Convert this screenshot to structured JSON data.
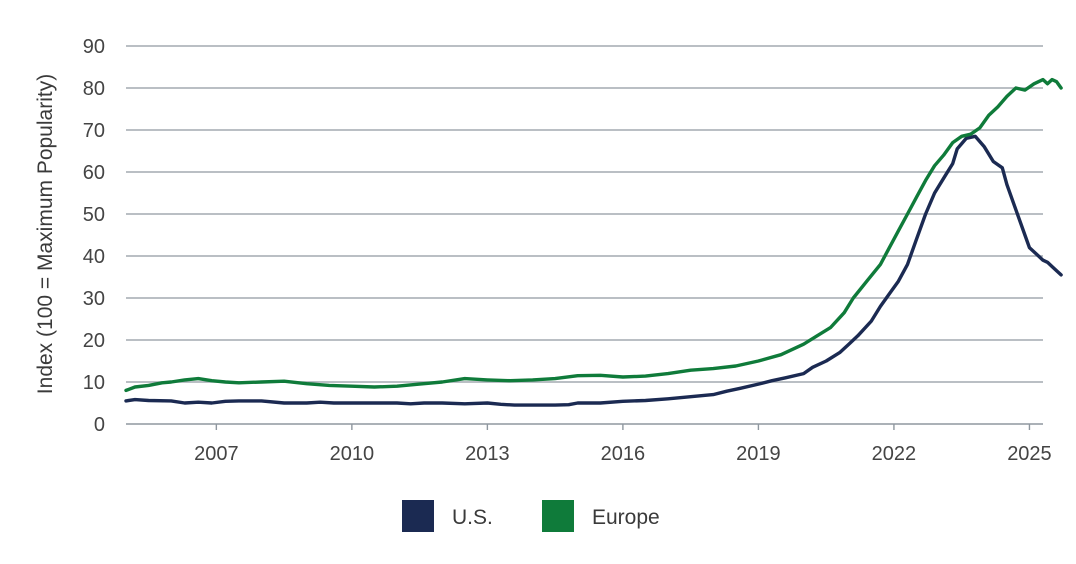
{
  "chart_data": {
    "type": "line",
    "title": "",
    "xlabel": "",
    "ylabel": "Index (100 = Maximum Popularity)",
    "ylim": [
      0,
      90
    ],
    "yticks": [
      0,
      10,
      20,
      30,
      40,
      50,
      60,
      70,
      80,
      90
    ],
    "xlim": [
      2005.0,
      2025.3
    ],
    "xtick_labels": [
      "2007",
      "2010",
      "2013",
      "2016",
      "2019",
      "2022",
      "2025"
    ],
    "grid": true,
    "legend_position": "bottom-center",
    "legend": [
      {
        "label": "U.S.",
        "color": "#1b2a52"
      },
      {
        "label": "Europe",
        "color": "#0f7b3a"
      }
    ],
    "series": [
      {
        "name": "U.S.",
        "color": "#1b2a52",
        "points": [
          [
            2005.0,
            5.5
          ],
          [
            2005.2,
            5.8
          ],
          [
            2005.5,
            5.6
          ],
          [
            2006.0,
            5.5
          ],
          [
            2006.3,
            5.0
          ],
          [
            2006.6,
            5.2
          ],
          [
            2006.9,
            5.0
          ],
          [
            2007.2,
            5.4
          ],
          [
            2007.5,
            5.5
          ],
          [
            2008.0,
            5.5
          ],
          [
            2008.5,
            5.0
          ],
          [
            2009.0,
            5.0
          ],
          [
            2009.3,
            5.2
          ],
          [
            2009.6,
            5.0
          ],
          [
            2010.0,
            5.0
          ],
          [
            2010.5,
            5.0
          ],
          [
            2011.0,
            5.0
          ],
          [
            2011.3,
            4.8
          ],
          [
            2011.6,
            5.0
          ],
          [
            2012.0,
            5.0
          ],
          [
            2012.5,
            4.8
          ],
          [
            2013.0,
            5.0
          ],
          [
            2013.3,
            4.7
          ],
          [
            2013.6,
            4.5
          ],
          [
            2014.0,
            4.5
          ],
          [
            2014.5,
            4.5
          ],
          [
            2014.8,
            4.6
          ],
          [
            2015.0,
            5.0
          ],
          [
            2015.5,
            5.0
          ],
          [
            2016.0,
            5.4
          ],
          [
            2016.5,
            5.6
          ],
          [
            2017.0,
            6.0
          ],
          [
            2017.5,
            6.5
          ],
          [
            2018.0,
            7.0
          ],
          [
            2018.3,
            7.8
          ],
          [
            2018.6,
            8.5
          ],
          [
            2019.0,
            9.5
          ],
          [
            2019.3,
            10.3
          ],
          [
            2019.6,
            11.0
          ],
          [
            2020.0,
            12.0
          ],
          [
            2020.2,
            13.5
          ],
          [
            2020.5,
            15.0
          ],
          [
            2020.8,
            17.0
          ],
          [
            2021.0,
            19.0
          ],
          [
            2021.2,
            21.0
          ],
          [
            2021.5,
            24.5
          ],
          [
            2021.7,
            28.0
          ],
          [
            2021.9,
            31.0
          ],
          [
            2022.1,
            34.0
          ],
          [
            2022.3,
            38.0
          ],
          [
            2022.5,
            44.0
          ],
          [
            2022.7,
            50.0
          ],
          [
            2022.9,
            55.0
          ],
          [
            2023.1,
            58.5
          ],
          [
            2023.3,
            62.0
          ],
          [
            2023.4,
            65.5
          ],
          [
            2023.6,
            68.0
          ],
          [
            2023.8,
            68.5
          ],
          [
            2024.0,
            66.0
          ],
          [
            2024.2,
            62.5
          ],
          [
            2024.4,
            61.0
          ],
          [
            2024.5,
            57.0
          ],
          [
            2024.7,
            51.0
          ],
          [
            2024.9,
            45.0
          ],
          [
            2025.0,
            42.0
          ],
          [
            2025.2,
            40.0
          ],
          [
            2025.3,
            39.0
          ],
          [
            2025.4,
            38.5
          ],
          [
            2025.5,
            37.5
          ],
          [
            2025.6,
            36.5
          ],
          [
            2025.7,
            35.5
          ]
        ]
      },
      {
        "name": "Europe",
        "color": "#0f7b3a",
        "points": [
          [
            2005.0,
            8.0
          ],
          [
            2005.2,
            8.8
          ],
          [
            2005.5,
            9.2
          ],
          [
            2005.8,
            9.8
          ],
          [
            2006.0,
            10.0
          ],
          [
            2006.3,
            10.5
          ],
          [
            2006.6,
            10.8
          ],
          [
            2006.9,
            10.3
          ],
          [
            2007.2,
            10.0
          ],
          [
            2007.5,
            9.8
          ],
          [
            2008.0,
            10.0
          ],
          [
            2008.5,
            10.2
          ],
          [
            2009.0,
            9.6
          ],
          [
            2009.5,
            9.2
          ],
          [
            2010.0,
            9.0
          ],
          [
            2010.5,
            8.8
          ],
          [
            2011.0,
            9.0
          ],
          [
            2011.5,
            9.5
          ],
          [
            2012.0,
            10.0
          ],
          [
            2012.5,
            10.8
          ],
          [
            2013.0,
            10.5
          ],
          [
            2013.5,
            10.3
          ],
          [
            2014.0,
            10.5
          ],
          [
            2014.5,
            10.8
          ],
          [
            2015.0,
            11.5
          ],
          [
            2015.5,
            11.6
          ],
          [
            2016.0,
            11.2
          ],
          [
            2016.5,
            11.4
          ],
          [
            2017.0,
            12.0
          ],
          [
            2017.5,
            12.8
          ],
          [
            2018.0,
            13.2
          ],
          [
            2018.5,
            13.8
          ],
          [
            2019.0,
            15.0
          ],
          [
            2019.5,
            16.5
          ],
          [
            2020.0,
            19.0
          ],
          [
            2020.3,
            21.0
          ],
          [
            2020.6,
            23.0
          ],
          [
            2020.9,
            26.5
          ],
          [
            2021.1,
            30.0
          ],
          [
            2021.4,
            34.0
          ],
          [
            2021.7,
            38.0
          ],
          [
            2021.9,
            42.0
          ],
          [
            2022.1,
            46.0
          ],
          [
            2022.3,
            50.0
          ],
          [
            2022.5,
            54.0
          ],
          [
            2022.7,
            58.0
          ],
          [
            2022.9,
            61.5
          ],
          [
            2023.1,
            64.0
          ],
          [
            2023.3,
            67.0
          ],
          [
            2023.5,
            68.5
          ],
          [
            2023.7,
            69.0
          ],
          [
            2023.9,
            70.5
          ],
          [
            2024.1,
            73.5
          ],
          [
            2024.3,
            75.5
          ],
          [
            2024.5,
            78.0
          ],
          [
            2024.7,
            80.0
          ],
          [
            2024.9,
            79.5
          ],
          [
            2025.1,
            81.0
          ],
          [
            2025.3,
            82.0
          ],
          [
            2025.4,
            81.0
          ],
          [
            2025.5,
            82.0
          ],
          [
            2025.6,
            81.5
          ],
          [
            2025.7,
            80.0
          ]
        ]
      }
    ]
  }
}
